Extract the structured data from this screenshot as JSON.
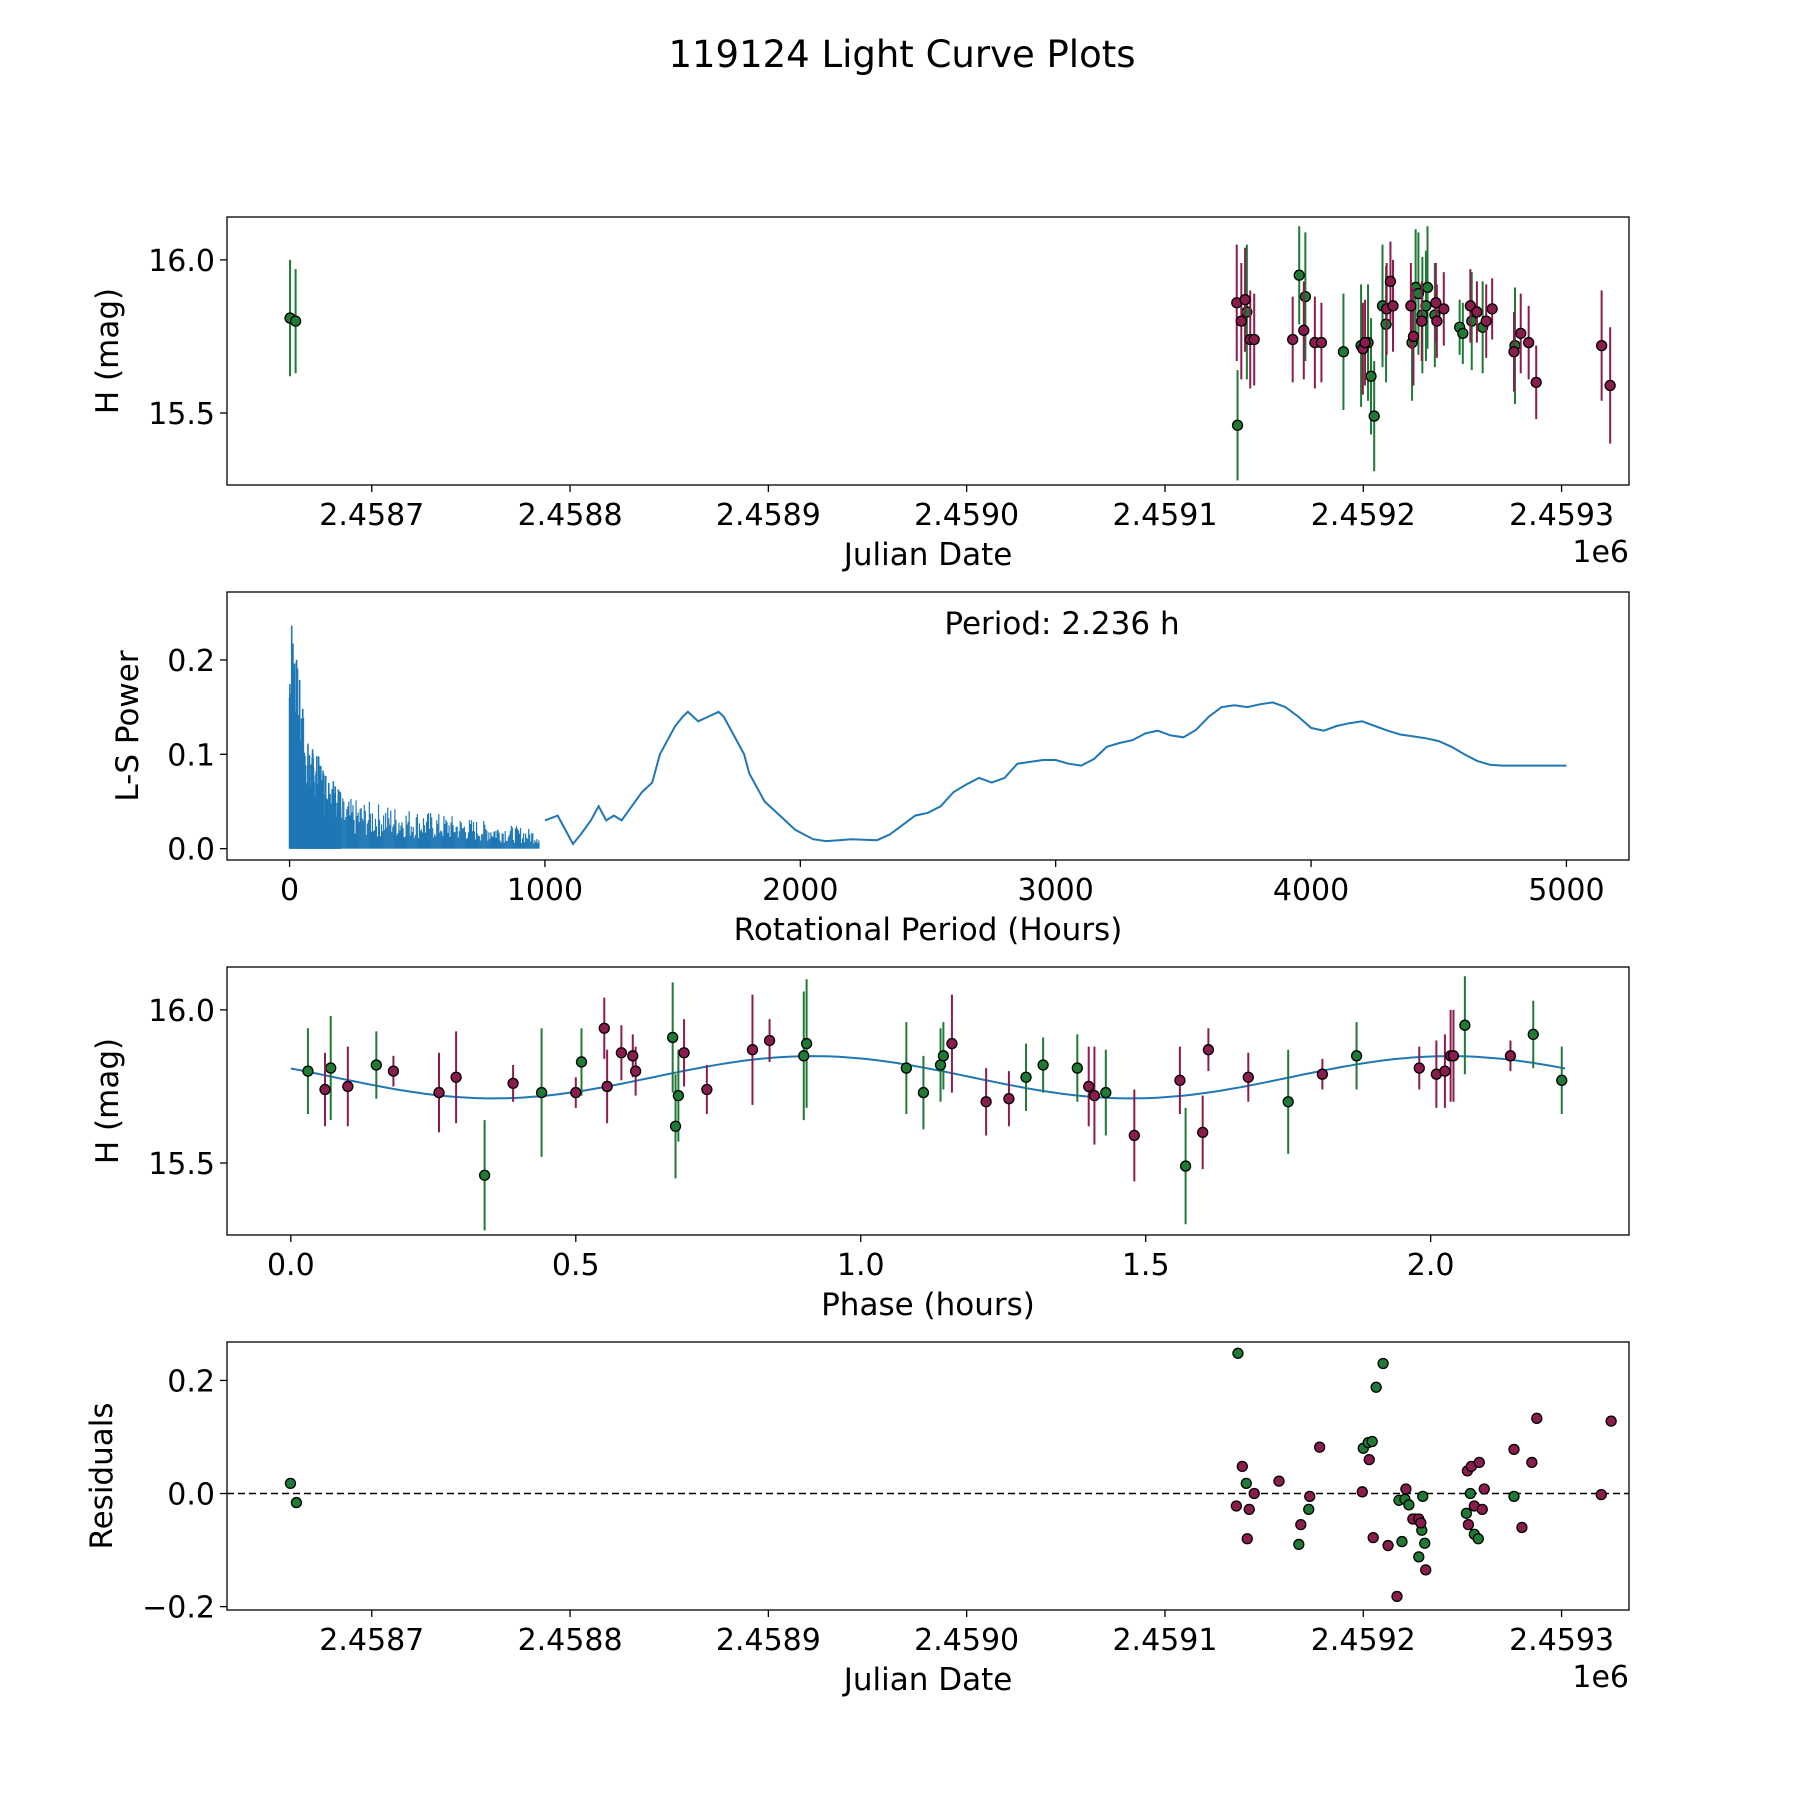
{
  "figure": {
    "title": "119124 Light Curve Plots"
  },
  "colors": {
    "green": "#1e7a34",
    "purple": "#8a1c4e",
    "blue": "#1f77b4"
  },
  "chart_data": [
    {
      "id": "lc",
      "type": "scatter",
      "xlabel": "Julian Date",
      "ylabel": "H (mag)",
      "offset_label": "1e6",
      "xlim": [
        2458627,
        2459334
      ],
      "ylim": [
        15.265,
        16.14
      ],
      "xticks": [
        2458700,
        2458800,
        2458900,
        2459000,
        2459100,
        2459200,
        2459300
      ],
      "xtick_labels": [
        "2.4587",
        "2.4588",
        "2.4589",
        "2.4590",
        "2.4591",
        "2.4592",
        "2.4593"
      ],
      "yticks": [
        15.5,
        16.0
      ],
      "ytick_labels": [
        "15.5",
        "16.0"
      ],
      "series": [
        {
          "name": "green",
          "color_key": "green",
          "x": [
            2458658.8,
            2458661.6,
            2459136.6,
            2459141.3,
            2459167.7,
            2459170.8,
            2459190.0,
            2459198.9,
            2459202.4,
            2459203.9,
            2459205.5,
            2459209.7,
            2459211.5,
            2459224.6,
            2459226.4,
            2459227.8,
            2459229.8,
            2459231.6,
            2459232.4,
            2459236.1,
            2459248.6,
            2459250.2,
            2459254.7,
            2459260.2,
            2459276.5
          ],
          "y": [
            15.81,
            15.8,
            15.46,
            15.83,
            15.95,
            15.88,
            15.7,
            15.72,
            15.73,
            15.62,
            15.49,
            15.85,
            15.79,
            15.73,
            15.91,
            15.89,
            15.82,
            15.85,
            15.91,
            15.82,
            15.78,
            15.76,
            15.8,
            15.78,
            15.72
          ],
          "err": [
            0.19,
            0.17,
            0.18,
            0.22,
            0.16,
            0.21,
            0.19,
            0.2,
            0.19,
            0.19,
            0.18,
            0.2,
            0.19,
            0.19,
            0.19,
            0.2,
            0.19,
            0.18,
            0.2,
            0.17,
            0.09,
            0.1,
            0.16,
            0.15,
            0.19
          ]
        },
        {
          "name": "purple",
          "color_key": "purple",
          "x": [
            2459136.2,
            2459138.5,
            2459140.4,
            2459143.0,
            2459145.0,
            2459164.4,
            2459170.0,
            2459175.6,
            2459178.9,
            2459199.8,
            2459200.9,
            2459211.8,
            2459213.7,
            2459215.0,
            2459224.0,
            2459225.3,
            2459229.5,
            2459236.6,
            2459237.1,
            2459240.6,
            2459254.0,
            2459257.3,
            2459262.0,
            2459265.0,
            2459276.0,
            2459279.4,
            2459283.4,
            2459287.2,
            2459320.2,
            2459324.5
          ],
          "y": [
            15.86,
            15.8,
            15.87,
            15.74,
            15.74,
            15.74,
            15.77,
            15.73,
            15.73,
            15.71,
            15.73,
            15.84,
            15.93,
            15.85,
            15.85,
            15.75,
            15.8,
            15.86,
            15.8,
            15.84,
            15.85,
            15.83,
            15.8,
            15.84,
            15.7,
            15.76,
            15.73,
            15.6,
            15.72,
            15.59
          ],
          "err": [
            0.19,
            0.19,
            0.17,
            0.16,
            0.15,
            0.14,
            0.16,
            0.15,
            0.13,
            0.15,
            0.14,
            0.15,
            0.13,
            0.15,
            0.14,
            0.16,
            0.13,
            0.13,
            0.12,
            0.12,
            0.12,
            0.1,
            0.12,
            0.1,
            0.13,
            0.13,
            0.12,
            0.12,
            0.18,
            0.19
          ]
        }
      ]
    },
    {
      "id": "ls",
      "type": "line",
      "xlabel": "Rotational Period (Hours)",
      "ylabel": "L-S Power",
      "annotation": "Period: 2.236 h",
      "xlim": [
        -245,
        5245
      ],
      "ylim": [
        -0.012,
        0.272
      ],
      "xticks": [
        0,
        1000,
        2000,
        3000,
        4000,
        5000
      ],
      "xtick_labels": [
        "0",
        "1000",
        "2000",
        "3000",
        "4000",
        "5000"
      ],
      "yticks": [
        0.0,
        0.1,
        0.2
      ],
      "ytick_labels": [
        "0.0",
        "0.1",
        "0.2"
      ],
      "series": [
        {
          "name": "power",
          "color_key": "blue",
          "x": [
            1000,
            1050,
            1090,
            1110,
            1140,
            1180,
            1210,
            1240,
            1270,
            1300,
            1340,
            1380,
            1420,
            1450,
            1480,
            1510,
            1540,
            1560,
            1600,
            1640,
            1680,
            1700,
            1740,
            1780,
            1800,
            1820,
            1860,
            1900,
            1940,
            1980,
            2050,
            2100,
            2150,
            2200,
            2300,
            2350,
            2400,
            2450,
            2500,
            2550,
            2600,
            2650,
            2700,
            2750,
            2800,
            2850,
            2900,
            2950,
            3000,
            3050,
            3100,
            3150,
            3200,
            3250,
            3300,
            3350,
            3400,
            3450,
            3500,
            3550,
            3600,
            3650,
            3700,
            3750,
            3800,
            3850,
            3900,
            3950,
            4000,
            4050,
            4100,
            4150,
            4200,
            4250,
            4300,
            4350,
            4400,
            4450,
            4500,
            4550,
            4600,
            4650,
            4700,
            4750,
            4800,
            4850,
            4900,
            4950,
            5000
          ],
          "y": [
            0.03,
            0.035,
            0.015,
            0.005,
            0.015,
            0.03,
            0.045,
            0.03,
            0.035,
            0.03,
            0.045,
            0.06,
            0.07,
            0.1,
            0.115,
            0.13,
            0.14,
            0.145,
            0.135,
            0.14,
            0.145,
            0.14,
            0.12,
            0.1,
            0.08,
            0.07,
            0.05,
            0.04,
            0.03,
            0.02,
            0.01,
            0.008,
            0.009,
            0.01,
            0.009,
            0.015,
            0.025,
            0.035,
            0.038,
            0.045,
            0.06,
            0.068,
            0.075,
            0.07,
            0.075,
            0.09,
            0.092,
            0.094,
            0.094,
            0.09,
            0.088,
            0.095,
            0.108,
            0.112,
            0.115,
            0.122,
            0.125,
            0.12,
            0.118,
            0.126,
            0.14,
            0.15,
            0.152,
            0.15,
            0.153,
            0.155,
            0.15,
            0.14,
            0.128,
            0.125,
            0.13,
            0.133,
            0.135,
            0.13,
            0.125,
            0.121,
            0.119,
            0.117,
            0.114,
            0.108,
            0.1,
            0.093,
            0.089,
            0.088,
            0.088,
            0.088,
            0.088,
            0.088,
            0.088
          ]
        }
      ]
    },
    {
      "id": "phase",
      "type": "scatter",
      "xlabel": "Phase (hours)",
      "ylabel": "H (mag)",
      "xlim": [
        -0.112,
        2.348
      ],
      "ylim": [
        15.265,
        16.14
      ],
      "xticks": [
        0.0,
        0.5,
        1.0,
        1.5,
        2.0
      ],
      "xtick_labels": [
        "0.0",
        "0.5",
        "1.0",
        "1.5",
        "2.0"
      ],
      "yticks": [
        15.5,
        16.0
      ],
      "ytick_labels": [
        "15.5",
        "16.0"
      ],
      "fit": {
        "name": "sinusoid fit",
        "color_key": "blue",
        "mean": 15.78,
        "amplitude": 0.069,
        "period": 1.118,
        "phase_of_max": 0.915,
        "x_range": [
          0.0,
          2.236
        ]
      },
      "series": [
        {
          "name": "green",
          "color_key": "green",
          "x": [
            0.03,
            0.07,
            0.15,
            0.34,
            0.44,
            0.51,
            0.67,
            0.675,
            0.68,
            0.9,
            0.905,
            1.08,
            1.11,
            1.14,
            1.145,
            1.29,
            1.32,
            1.38,
            1.43,
            1.57,
            1.75,
            1.87,
            2.06,
            2.18,
            2.23
          ],
          "y": [
            15.8,
            15.81,
            15.82,
            15.46,
            15.73,
            15.83,
            15.91,
            15.62,
            15.72,
            15.85,
            15.89,
            15.81,
            15.73,
            15.82,
            15.85,
            15.78,
            15.82,
            15.81,
            15.73,
            15.49,
            15.7,
            15.85,
            15.95,
            15.92,
            15.77
          ],
          "err": [
            0.14,
            0.17,
            0.11,
            0.18,
            0.21,
            0.11,
            0.18,
            0.17,
            0.15,
            0.21,
            0.21,
            0.15,
            0.12,
            0.12,
            0.11,
            0.11,
            0.09,
            0.11,
            0.14,
            0.19,
            0.17,
            0.11,
            0.16,
            0.11,
            0.11
          ]
        },
        {
          "name": "purple",
          "color_key": "purple",
          "x": [
            0.06,
            0.1,
            0.18,
            0.26,
            0.29,
            0.39,
            0.5,
            0.55,
            0.555,
            0.58,
            0.6,
            0.605,
            0.69,
            0.73,
            0.81,
            0.84,
            1.16,
            1.22,
            1.26,
            1.4,
            1.41,
            1.48,
            1.56,
            1.6,
            1.61,
            1.68,
            1.81,
            1.98,
            2.01,
            2.025,
            2.035,
            2.04,
            2.14
          ],
          "y": [
            15.74,
            15.75,
            15.8,
            15.73,
            15.78,
            15.76,
            15.73,
            15.94,
            15.75,
            15.86,
            15.85,
            15.8,
            15.86,
            15.74,
            15.87,
            15.9,
            15.89,
            15.7,
            15.71,
            15.75,
            15.72,
            15.59,
            15.77,
            15.6,
            15.87,
            15.78,
            15.79,
            15.81,
            15.79,
            15.8,
            15.85,
            15.85,
            15.85
          ],
          "err": [
            0.12,
            0.13,
            0.05,
            0.13,
            0.15,
            0.06,
            0.05,
            0.1,
            0.12,
            0.09,
            0.07,
            0.08,
            0.11,
            0.08,
            0.18,
            0.07,
            0.16,
            0.11,
            0.09,
            0.13,
            0.16,
            0.15,
            0.11,
            0.12,
            0.07,
            0.08,
            0.05,
            0.07,
            0.11,
            0.12,
            0.15,
            0.15,
            0.05
          ]
        }
      ]
    },
    {
      "id": "resid",
      "type": "scatter",
      "xlabel": "Julian Date",
      "ylabel": "Residuals",
      "offset_label": "1e6",
      "xlim": [
        2458627,
        2459334
      ],
      "ylim": [
        -0.206,
        0.268
      ],
      "xticks": [
        2458700,
        2458800,
        2458900,
        2459000,
        2459100,
        2459200,
        2459300
      ],
      "xtick_labels": [
        "2.4587",
        "2.4588",
        "2.4589",
        "2.4590",
        "2.4591",
        "2.4592",
        "2.4593"
      ],
      "yticks": [
        -0.2,
        0.0,
        0.2
      ],
      "ytick_labels": [
        "−0.2",
        "0.0",
        "0.2"
      ],
      "zero_line": true,
      "series": [
        {
          "name": "green",
          "color_key": "green",
          "x": [
            2458659,
            2458662,
            2459136.8,
            2459141,
            2459167.5,
            2459172.5,
            2459200,
            2459202.5,
            2459204.5,
            2459206.5,
            2459210,
            2459218,
            2459219.5,
            2459221,
            2459223,
            2459226,
            2459228,
            2459229.5,
            2459230,
            2459231,
            2459252,
            2459254,
            2459256,
            2459258,
            2459276
          ],
          "y": [
            0.018,
            -0.016,
            0.248,
            0.018,
            -0.09,
            -0.028,
            0.08,
            0.09,
            0.092,
            0.188,
            0.23,
            -0.012,
            -0.085,
            -0.01,
            -0.02,
            -0.045,
            -0.112,
            -0.065,
            -0.005,
            -0.088,
            -0.035,
            0.0,
            -0.072,
            -0.08,
            -0.005
          ]
        },
        {
          "name": "purple",
          "color_key": "purple",
          "x": [
            2459136,
            2459139,
            2459141.5,
            2459142.5,
            2459145,
            2459157.5,
            2459168.5,
            2459173,
            2459178,
            2459199.5,
            2459203,
            2459205,
            2459212.5,
            2459217,
            2459221.5,
            2459225,
            2459228,
            2459229,
            2459231.5,
            2459252.5,
            2459253,
            2459254.5,
            2459256,
            2459258.5,
            2459260,
            2459261,
            2459276,
            2459280,
            2459285,
            2459287.5,
            2459320,
            2459325
          ],
          "y": [
            -0.022,
            0.048,
            -0.08,
            -0.028,
            0.0,
            0.022,
            -0.055,
            -0.005,
            0.082,
            0.003,
            0.06,
            -0.078,
            -0.092,
            -0.182,
            0.008,
            -0.045,
            -0.045,
            -0.052,
            -0.135,
            0.04,
            -0.055,
            0.048,
            -0.022,
            0.055,
            -0.028,
            0.008,
            0.078,
            -0.06,
            0.055,
            0.133,
            -0.002,
            0.128
          ]
        }
      ]
    }
  ]
}
